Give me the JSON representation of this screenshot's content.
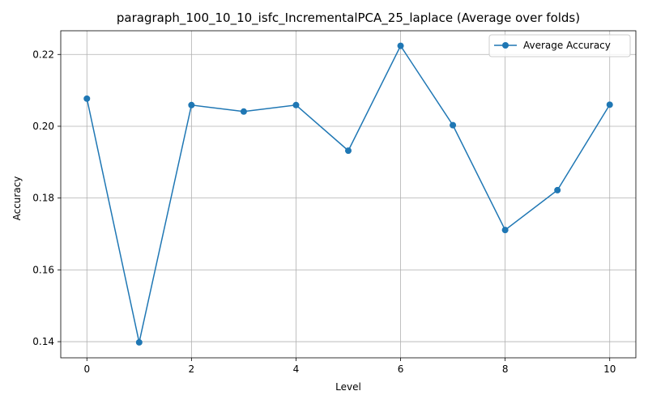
{
  "chart_data": {
    "type": "line",
    "title": "paragraph_100_10_10_isfc_IncrementalPCA_25_laplace (Average over folds)",
    "xlabel": "Level",
    "ylabel": "Accuracy",
    "x": [
      0,
      1,
      2,
      3,
      4,
      5,
      6,
      7,
      8,
      9,
      10
    ],
    "series": [
      {
        "name": "Average Accuracy",
        "values": [
          0.2077,
          0.1398,
          0.2059,
          0.2041,
          0.2059,
          0.1932,
          0.2224,
          0.2003,
          0.1711,
          0.1822,
          0.206
        ],
        "color": "#1f77b4",
        "marker": "circle"
      }
    ],
    "xlim": [
      -0.5,
      10.5
    ],
    "ylim": [
      0.1355,
      0.2266
    ],
    "xticks": [
      0,
      2,
      4,
      6,
      8,
      10
    ],
    "xtick_labels": [
      "0",
      "2",
      "4",
      "6",
      "8",
      "10"
    ],
    "yticks": [
      0.14,
      0.16,
      0.18,
      0.2,
      0.22
    ],
    "ytick_labels": [
      "0.14",
      "0.16",
      "0.18",
      "0.20",
      "0.22"
    ],
    "grid": true,
    "legend_position": "top-right"
  }
}
